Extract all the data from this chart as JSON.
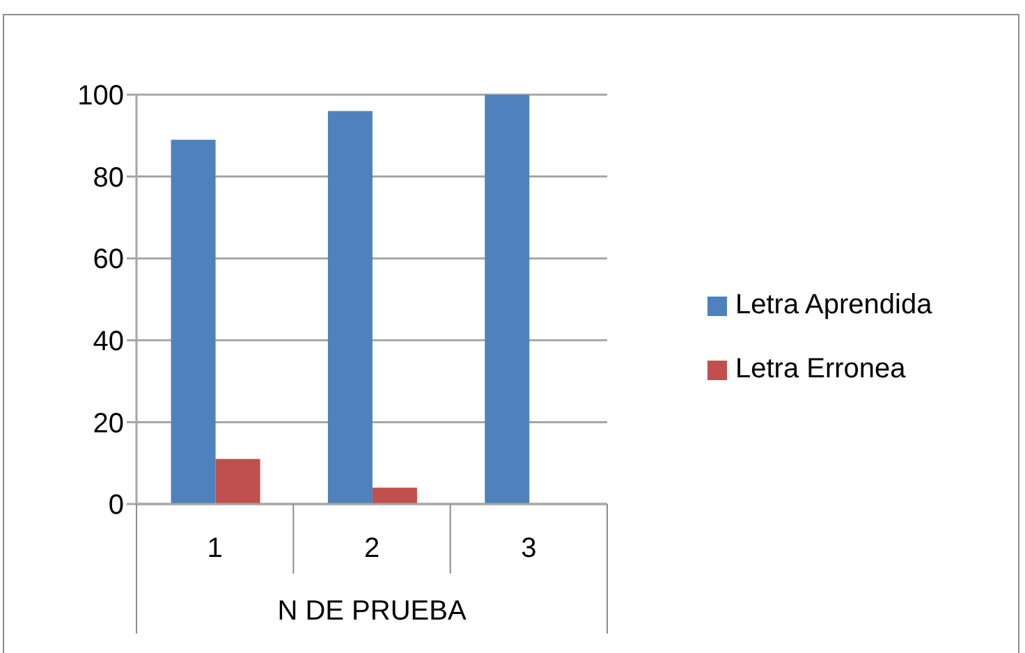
{
  "chart_data": {
    "type": "bar",
    "xlabel": "N DE PRUEBA",
    "categories": [
      "1",
      "2",
      "3"
    ],
    "series": [
      {
        "name": "Letra Aprendida",
        "color": "#4f81bd",
        "values": [
          89,
          96,
          100
        ]
      },
      {
        "name": "Letra Erronea",
        "color": "#c0504d",
        "values": [
          11,
          4,
          0
        ]
      }
    ],
    "ylim": [
      0,
      100
    ],
    "yticks": [
      0,
      20,
      40,
      60,
      80,
      100
    ],
    "grid": "y",
    "legend": "right"
  }
}
